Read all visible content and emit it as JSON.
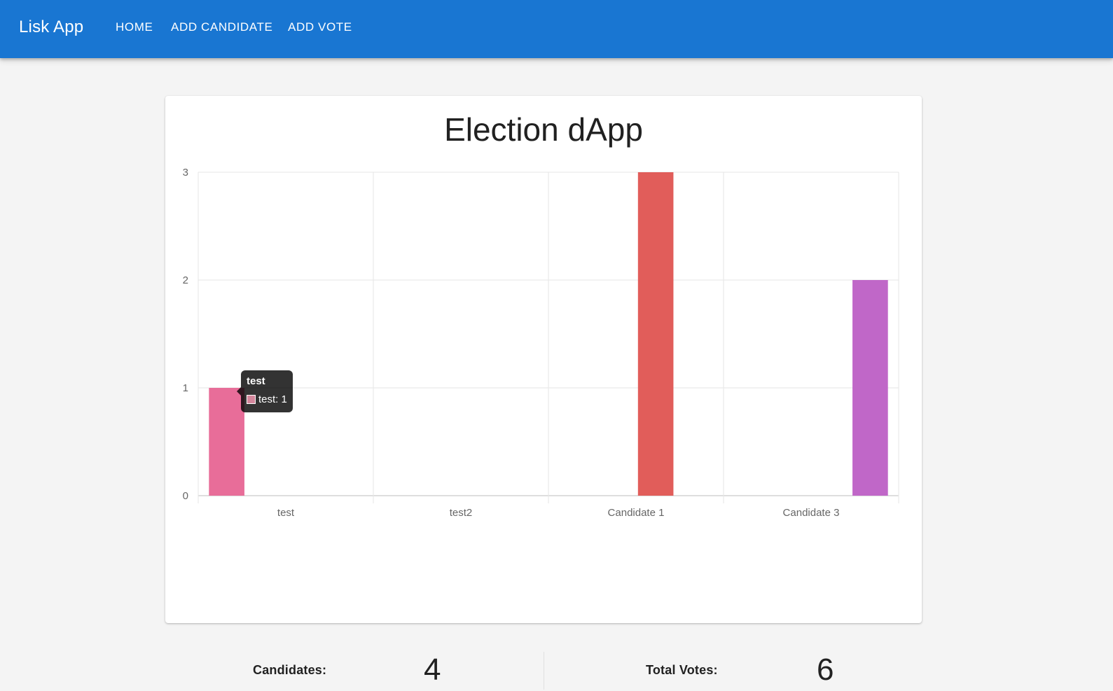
{
  "appbar": {
    "brand": "Lisk App",
    "color": "#1976d2",
    "nav": [
      {
        "label": "HOME"
      },
      {
        "label": "ADD CANDIDATE"
      },
      {
        "label": "ADD VOTE"
      }
    ]
  },
  "main": {
    "title": "Election dApp",
    "tooltip": {
      "title": "test",
      "body": "test: 1",
      "swatch_color": "#d4879c"
    },
    "stats": {
      "candidates_label": "Candidates:",
      "candidates_value": "4",
      "votes_label": "Total Votes:",
      "votes_value": "6"
    }
  },
  "chart_data": {
    "type": "bar",
    "categories": [
      "test",
      "test2",
      "Candidate 1",
      "Candidate 3"
    ],
    "series": [
      {
        "name": "test",
        "values": [
          1,
          null,
          null,
          null
        ],
        "color": "#e86d99"
      },
      {
        "name": "test2",
        "values": [
          null,
          0,
          null,
          null
        ],
        "color": "#e8a06d"
      },
      {
        "name": "Candidate 1",
        "values": [
          null,
          null,
          3,
          null
        ],
        "color": "#e15d5a"
      },
      {
        "name": "Candidate 3",
        "values": [
          null,
          null,
          null,
          2
        ],
        "color": "#c067c8"
      }
    ],
    "yticks": [
      "0",
      "1",
      "2",
      "3"
    ],
    "ylim": [
      0,
      3
    ],
    "grid": true,
    "legend": "none"
  }
}
